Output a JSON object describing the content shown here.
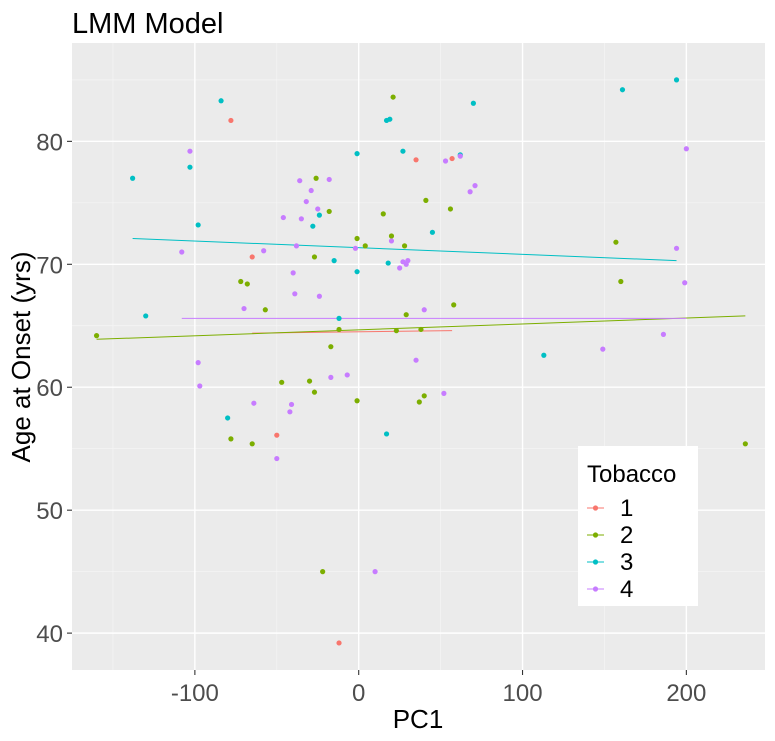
{
  "chart_data": {
    "type": "scatter",
    "title": "LMM Model",
    "xlabel": "PC1",
    "ylabel": "Age at Onset (yrs)",
    "xlim": [
      -175,
      248
    ],
    "ylim": [
      37,
      88
    ],
    "x_ticks": [
      -100,
      0,
      100,
      200
    ],
    "y_ticks": [
      40,
      50,
      60,
      70,
      80
    ],
    "x_tick_labels": [
      "-100",
      "0",
      "100",
      "200"
    ],
    "y_tick_labels": [
      "40",
      "50",
      "60",
      "70",
      "80"
    ],
    "grid": true,
    "background": "#EBEBEB",
    "legend": {
      "title": "Tobacco",
      "position": "bottom-right"
    },
    "series": [
      {
        "name": "1",
        "color": "#F8766D",
        "points": [
          [
            -78,
            81.7
          ],
          [
            -65,
            70.6
          ],
          [
            -50,
            56.1
          ],
          [
            -12,
            39.2
          ],
          [
            35,
            78.5
          ],
          [
            57,
            78.6
          ]
        ],
        "fit_line": {
          "x": [
            -65,
            57
          ],
          "y": [
            64.4,
            64.6
          ]
        }
      },
      {
        "name": "2",
        "color": "#7CAE00",
        "points": [
          [
            -160,
            64.2
          ],
          [
            -78,
            55.8
          ],
          [
            -72,
            68.6
          ],
          [
            -68,
            68.4
          ],
          [
            -65,
            55.4
          ],
          [
            -57,
            66.3
          ],
          [
            -47,
            60.4
          ],
          [
            -30,
            60.5
          ],
          [
            -27,
            59.6
          ],
          [
            -27,
            70.6
          ],
          [
            -26,
            77
          ],
          [
            -22,
            45
          ],
          [
            -18,
            74.3
          ],
          [
            -17,
            63.3
          ],
          [
            -12,
            64.7
          ],
          [
            -1,
            72.1
          ],
          [
            -1,
            58.9
          ],
          [
            4,
            71.5
          ],
          [
            15,
            74.1
          ],
          [
            20,
            72.3
          ],
          [
            21,
            83.6
          ],
          [
            23,
            64.6
          ],
          [
            28,
            71.5
          ],
          [
            29,
            65.9
          ],
          [
            37,
            58.8
          ],
          [
            38,
            64.7
          ],
          [
            40,
            59.3
          ],
          [
            41,
            75.2
          ],
          [
            56,
            74.5
          ],
          [
            58,
            66.7
          ],
          [
            157,
            71.8
          ],
          [
            160,
            68.6
          ],
          [
            236,
            55.4
          ]
        ],
        "fit_line": {
          "x": [
            -160,
            236
          ],
          "y": [
            63.9,
            65.8
          ]
        }
      },
      {
        "name": "3",
        "color": "#00BFC4",
        "points": [
          [
            -138,
            77
          ],
          [
            -130,
            65.8
          ],
          [
            -103,
            77.9
          ],
          [
            -98,
            73.2
          ],
          [
            -80,
            57.5
          ],
          [
            -84,
            83.3
          ],
          [
            -28,
            73.1
          ],
          [
            -24,
            74
          ],
          [
            -15,
            70.3
          ],
          [
            -12,
            65.6
          ],
          [
            -1,
            79
          ],
          [
            -1,
            69.4
          ],
          [
            17,
            56.2
          ],
          [
            17,
            81.7
          ],
          [
            18,
            70.1
          ],
          [
            19,
            81.8
          ],
          [
            27,
            79.2
          ],
          [
            45,
            72.6
          ],
          [
            62,
            78.9
          ],
          [
            70,
            83.1
          ],
          [
            113,
            62.6
          ],
          [
            161,
            84.2
          ],
          [
            194,
            85
          ]
        ],
        "fit_line": {
          "x": [
            -138,
            194
          ],
          "y": [
            72.1,
            70.3
          ]
        }
      },
      {
        "name": "4",
        "color": "#C77CFF",
        "points": [
          [
            -108,
            71
          ],
          [
            -103,
            79.2
          ],
          [
            -98,
            62
          ],
          [
            -97,
            60.1
          ],
          [
            -70,
            66.4
          ],
          [
            -64,
            58.7
          ],
          [
            -58,
            71.1
          ],
          [
            -50,
            54.2
          ],
          [
            -46,
            73.8
          ],
          [
            -42,
            58
          ],
          [
            -41,
            58.6
          ],
          [
            -40,
            69.3
          ],
          [
            -39,
            67.6
          ],
          [
            -38,
            71.5
          ],
          [
            -36,
            76.8
          ],
          [
            -35,
            73.7
          ],
          [
            -32,
            75.1
          ],
          [
            -29,
            76
          ],
          [
            -25,
            74.5
          ],
          [
            -24,
            67.4
          ],
          [
            -18,
            76.9
          ],
          [
            -17,
            60.8
          ],
          [
            -7,
            61
          ],
          [
            -2,
            71.3
          ],
          [
            10,
            45
          ],
          [
            20,
            71.9
          ],
          [
            25,
            69.7
          ],
          [
            27,
            70.2
          ],
          [
            29,
            70
          ],
          [
            30,
            70.3
          ],
          [
            35,
            62.2
          ],
          [
            40,
            66.3
          ],
          [
            52,
            59.5
          ],
          [
            53,
            78.4
          ],
          [
            62,
            78.8
          ],
          [
            68,
            75.9
          ],
          [
            71,
            76.4
          ],
          [
            149,
            63.1
          ],
          [
            186,
            64.3
          ],
          [
            194,
            71.3
          ],
          [
            199,
            68.5
          ],
          [
            200,
            79.4
          ]
        ],
        "fit_line": {
          "x": [
            -108,
            200
          ],
          "y": [
            65.6,
            65.6
          ]
        }
      }
    ]
  }
}
